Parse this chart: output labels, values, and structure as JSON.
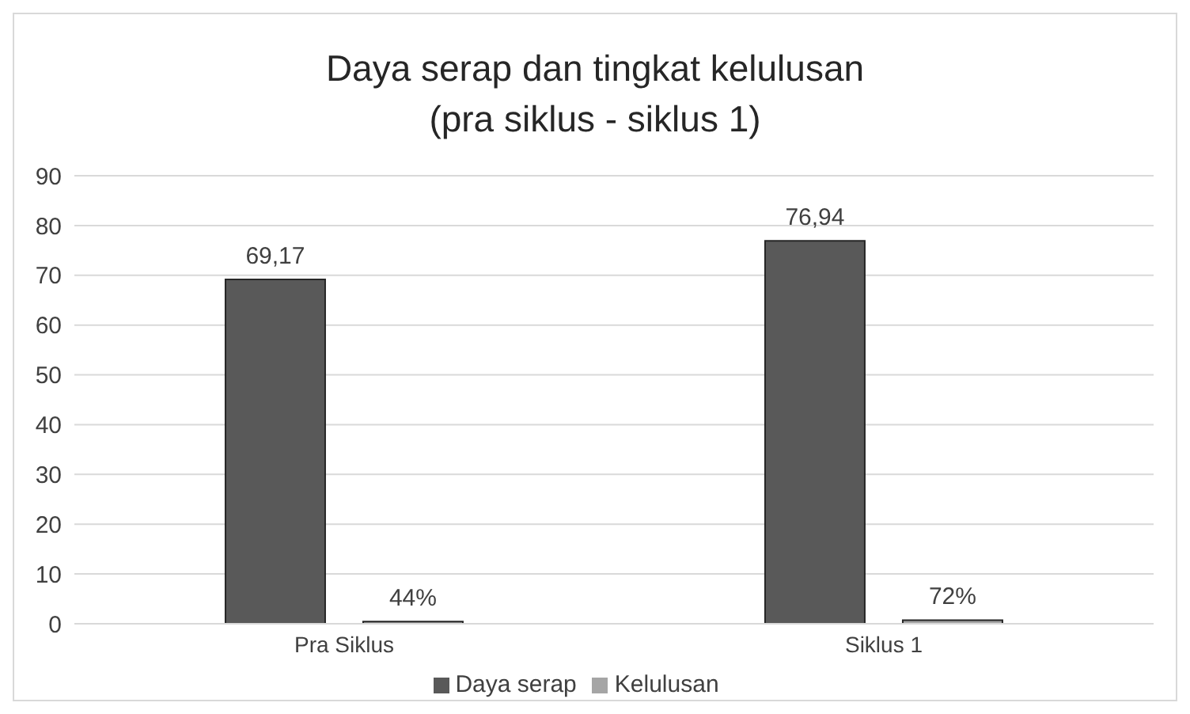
{
  "chart_data": {
    "type": "bar",
    "title": "Daya serap dan tingkat kelulusan (pra siklus - siklus 1)",
    "categories": [
      "Pra Siklus",
      "Siklus 1"
    ],
    "series": [
      {
        "name": "Daya serap",
        "color": "#595959",
        "values": [
          69.17,
          76.94
        ],
        "value_labels": [
          "69,17",
          "76,94"
        ]
      },
      {
        "name": "Kelulusan",
        "color": "#a5a5a5",
        "values": [
          0.44,
          0.72
        ],
        "value_labels": [
          "44%",
          "72%"
        ]
      }
    ],
    "ylim": [
      0,
      90
    ],
    "yticks": [
      0,
      10,
      20,
      30,
      40,
      50,
      60,
      70,
      80,
      90
    ],
    "grid": "y",
    "legend": "bottom"
  }
}
